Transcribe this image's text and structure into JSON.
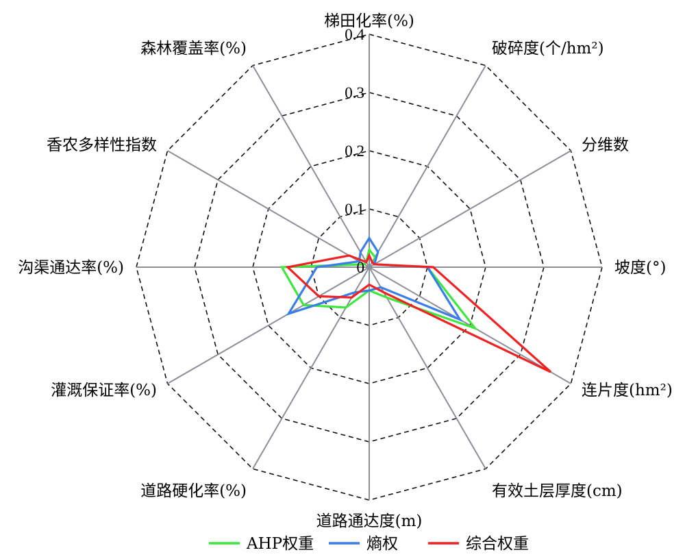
{
  "chart_data": {
    "type": "radar",
    "title": "",
    "categories": [
      "梯田化率(%)",
      "破碎度(个/hm²)",
      "分维数",
      "坡度(°)",
      "连片度(hm²)",
      "有效土层厚度(cm)",
      "道路通达度(m)",
      "道路硬化率(%)",
      "灌溉保证率(%)",
      "沟渠通达率(%)",
      "香农多样性指数",
      "森林覆盖率(%)"
    ],
    "rlim": [
      0,
      0.4
    ],
    "ticks": [
      0,
      0.1,
      0.2,
      0.3,
      0.4
    ],
    "tick_labels": [
      "0",
      "0.1",
      "0.2",
      "0.3",
      "0.4"
    ],
    "grid": "dashed",
    "legend_position": "bottom",
    "series": [
      {
        "name": "AHP权重",
        "color": "#3ee63e",
        "values": [
          0.03,
          0.02,
          0.01,
          0.1,
          0.21,
          0.06,
          0.04,
          0.08,
          0.13,
          0.15,
          0.01,
          0.01
        ]
      },
      {
        "name": "熵权",
        "color": "#3a7fe8",
        "values": [
          0.05,
          0.03,
          0.01,
          0.1,
          0.18,
          0.04,
          0.04,
          0.05,
          0.16,
          0.09,
          0.02,
          0.03
        ]
      },
      {
        "name": "综合权重",
        "color": "#ee2222",
        "values": [
          0.02,
          0.01,
          0.01,
          0.11,
          0.36,
          0.05,
          0.03,
          0.06,
          0.1,
          0.14,
          0.04,
          0.01
        ]
      }
    ]
  }
}
